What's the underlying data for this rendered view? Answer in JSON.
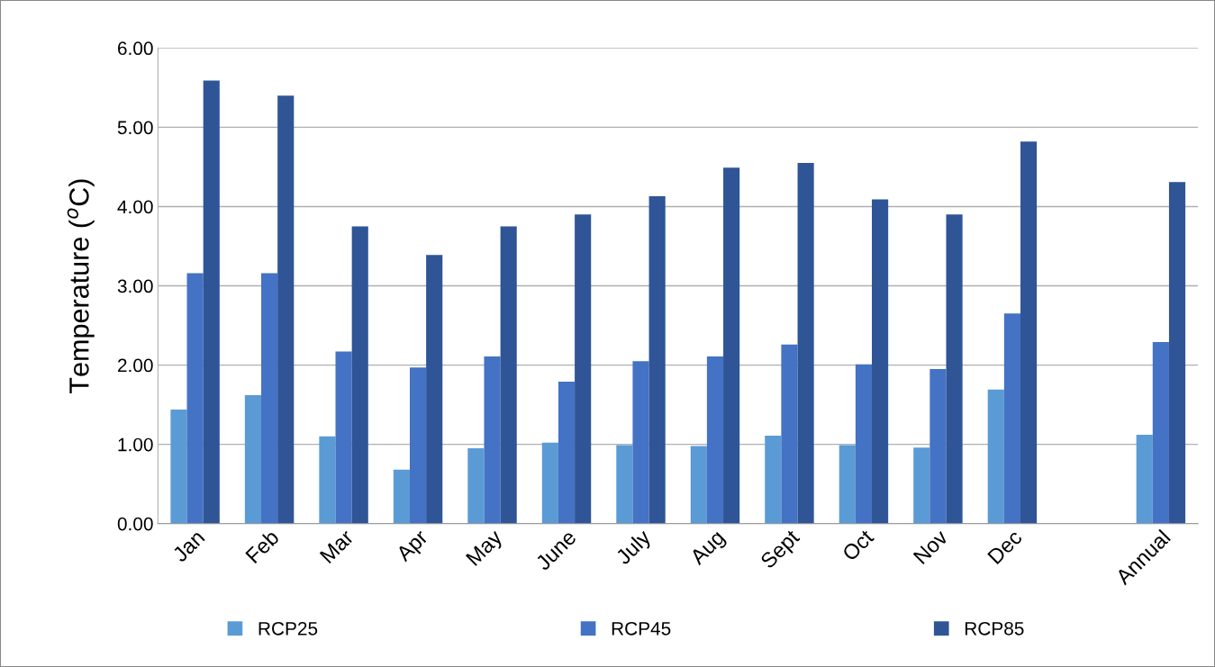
{
  "chart_data": {
    "type": "bar",
    "ylabel": "Temperature ($^{o}$C)",
    "categories": [
      "Jan",
      "Feb",
      "Mar",
      "Apr",
      "May",
      "June",
      "July",
      "Aug",
      "Sept",
      "Oct",
      "Nov",
      "Dec",
      null,
      "Annual"
    ],
    "series": [
      {
        "name": "RCP25",
        "color": "#5b9bd5",
        "values": [
          1.44,
          1.62,
          1.1,
          0.68,
          0.95,
          1.02,
          0.99,
          0.98,
          1.11,
          0.99,
          0.96,
          1.69,
          null,
          1.12
        ]
      },
      {
        "name": "RCP45",
        "color": "#4472c4",
        "values": [
          3.16,
          3.16,
          2.17,
          1.97,
          2.11,
          1.79,
          2.05,
          2.11,
          2.26,
          2.01,
          1.95,
          2.65,
          null,
          2.29
        ]
      },
      {
        "name": "RCP85",
        "color": "#2f5597",
        "values": [
          5.59,
          5.4,
          3.75,
          3.39,
          3.75,
          3.9,
          4.13,
          4.49,
          4.55,
          4.09,
          3.9,
          4.82,
          null,
          4.31
        ]
      }
    ],
    "ylim": [
      0,
      6
    ],
    "yticks": [
      {
        "value": 0,
        "label": "0.00"
      },
      {
        "value": 1,
        "label": "1.00"
      },
      {
        "value": 2,
        "label": "2.00"
      },
      {
        "value": 3,
        "label": "3.00"
      },
      {
        "value": 4,
        "label": "4.00"
      },
      {
        "value": 5,
        "label": "5.00"
      },
      {
        "value": 6,
        "label": "6.00"
      }
    ],
    "grid": "y",
    "legend": "bottom"
  }
}
